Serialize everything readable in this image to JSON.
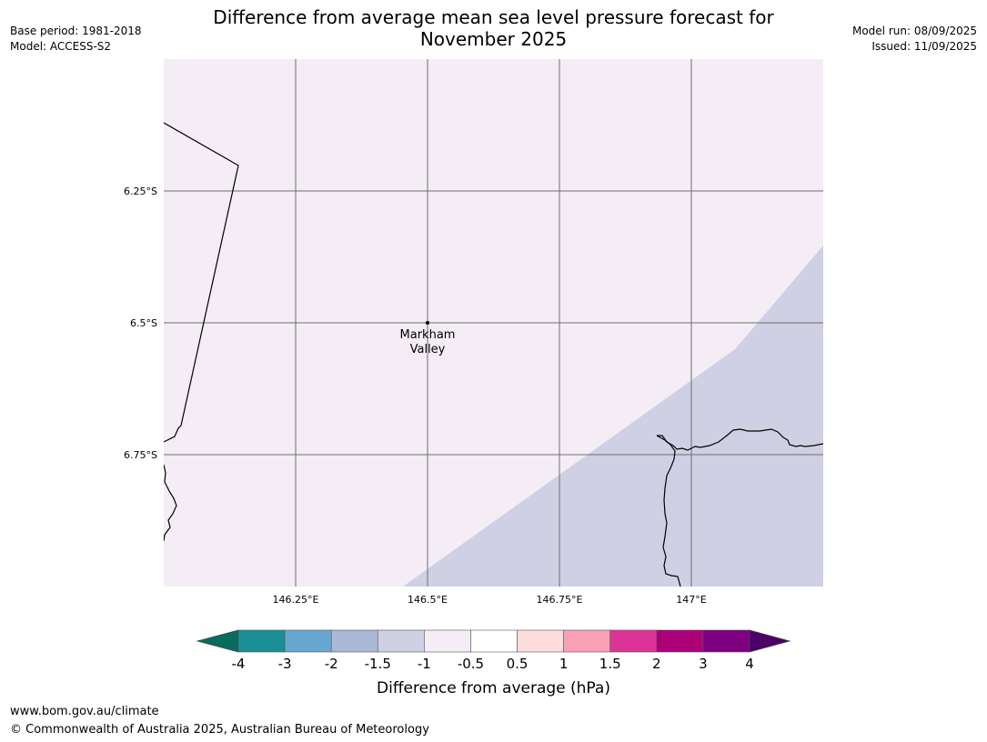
{
  "header": {
    "base_period": "Base period: 1981-2018",
    "model": "Model: ACCESS-S2",
    "title_line1": "Difference from average mean sea level pressure forecast for",
    "title_line2": "November 2025",
    "model_run": "Model run: 08/09/2025",
    "issued": "Issued: 11/09/2025"
  },
  "map": {
    "lon_range": [
      146.0,
      147.25
    ],
    "lat_range": [
      -7.0,
      -6.0
    ],
    "lon_ticks": [
      {
        "value": 146.25,
        "label": "146.25°E"
      },
      {
        "value": 146.5,
        "label": "146.5°E"
      },
      {
        "value": 146.75,
        "label": "146.75°E"
      },
      {
        "value": 147.0,
        "label": "147°E"
      }
    ],
    "lat_ticks": [
      {
        "value": -6.25,
        "label": "6.25°S"
      },
      {
        "value": -6.5,
        "label": "6.5°S"
      },
      {
        "value": -6.75,
        "label": "6.75°S"
      }
    ],
    "location": {
      "name_line1": "Markham",
      "name_line2": "Valley",
      "lon": 146.5,
      "lat": -6.5
    },
    "background_category": "-1 to -0.5",
    "background_color": "#f4edf5",
    "region_category": "-1.5 to -1",
    "region_color": "#d0d0e4",
    "grid": true
  },
  "colorbar": {
    "label": "Difference from average (hPa)",
    "ticks": [
      "-4",
      "-3",
      "-2",
      "-1.5",
      "-1",
      "-0.5",
      "0.5",
      "1",
      "1.5",
      "2",
      "3",
      "4"
    ],
    "low_extend_color": "#0a6b5f",
    "high_extend_color": "#4c0068",
    "colors": [
      "#1b8f96",
      "#68a8d0",
      "#a9b9d6",
      "#d0d0e4",
      "#f4edf5",
      "#ffffff",
      "#fcdcdc",
      "#f7a0b6",
      "#dc3396",
      "#ab0078",
      "#7e0080"
    ]
  },
  "footer": {
    "url": "www.bom.gov.au/climate",
    "copyright": "© Commonwealth of Australia 2025, Australian Bureau of Meteorology"
  }
}
